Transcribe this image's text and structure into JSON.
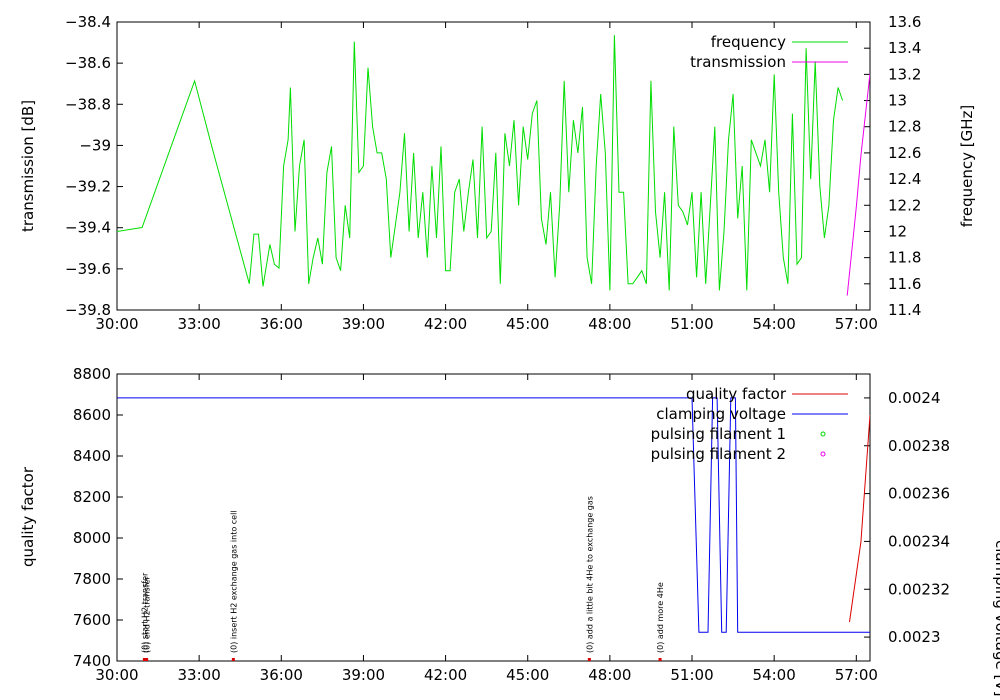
{
  "chart_data": [
    {
      "type": "line",
      "ylabel": "transmission [dB]",
      "y2label": "frequency [GHz]",
      "xlim": [
        "30:00",
        "57:30"
      ],
      "ylim": [
        -39.8,
        -38.4
      ],
      "y2lim": [
        11.4,
        13.6
      ],
      "x_ticks": [
        "30:00",
        "33:00",
        "36:00",
        "39:00",
        "42:00",
        "45:00",
        "48:00",
        "51:00",
        "54:00",
        "57:00"
      ],
      "y_ticks": [
        "-38.4",
        "-38.6",
        "-38.8",
        "-39",
        "-39.2",
        "-39.4",
        "-39.6",
        "-39.8"
      ],
      "y2_ticks": [
        "13.6",
        "13.4",
        "13.2",
        "13",
        "12.8",
        "12.6",
        "12.4",
        "12.2",
        "12",
        "11.8",
        "11.6",
        "11.4"
      ],
      "legend": "top-right",
      "grid": false,
      "series": [
        {
          "name": "frequency",
          "axis": "y2",
          "color": "#00dd00",
          "points": [
            [
              "30:00",
              12.0
            ],
            [
              "30:55",
              12.03
            ],
            [
              "32:50",
              13.15
            ],
            [
              "33:30",
              12.62
            ],
            [
              "34:50",
              11.6
            ],
            [
              "35:00",
              11.98
            ],
            [
              "35:10",
              11.98
            ],
            [
              "35:20",
              11.58
            ],
            [
              "35:35",
              11.9
            ],
            [
              "35:45",
              11.75
            ],
            [
              "35:55",
              11.72
            ],
            [
              "36:05",
              12.5
            ],
            [
              "36:15",
              12.7
            ],
            [
              "36:20",
              13.1
            ],
            [
              "36:30",
              12.0
            ],
            [
              "36:40",
              12.5
            ],
            [
              "36:50",
              12.7
            ],
            [
              "37:00",
              11.6
            ],
            [
              "37:10",
              11.8
            ],
            [
              "37:20",
              11.95
            ],
            [
              "37:30",
              11.75
            ],
            [
              "37:40",
              12.45
            ],
            [
              "37:50",
              12.65
            ],
            [
              "38:00",
              11.8
            ],
            [
              "38:10",
              11.7
            ],
            [
              "38:20",
              12.2
            ],
            [
              "38:30",
              11.95
            ],
            [
              "38:40",
              13.45
            ],
            [
              "38:50",
              12.45
            ],
            [
              "39:00",
              12.5
            ],
            [
              "39:10",
              13.25
            ],
            [
              "39:20",
              12.8
            ],
            [
              "39:30",
              12.6
            ],
            [
              "39:40",
              12.6
            ],
            [
              "39:50",
              12.4
            ],
            [
              "40:00",
              11.8
            ],
            [
              "40:10",
              12.05
            ],
            [
              "40:20",
              12.3
            ],
            [
              "40:30",
              12.75
            ],
            [
              "40:40",
              12.0
            ],
            [
              "40:50",
              12.6
            ],
            [
              "41:00",
              11.95
            ],
            [
              "41:10",
              12.3
            ],
            [
              "41:20",
              11.8
            ],
            [
              "41:30",
              12.5
            ],
            [
              "41:40",
              11.95
            ],
            [
              "41:50",
              12.65
            ],
            [
              "42:00",
              11.7
            ],
            [
              "42:10",
              11.7
            ],
            [
              "42:20",
              12.3
            ],
            [
              "42:30",
              12.4
            ],
            [
              "42:40",
              12.0
            ],
            [
              "42:50",
              12.3
            ],
            [
              "43:00",
              12.55
            ],
            [
              "43:10",
              11.95
            ],
            [
              "43:20",
              12.8
            ],
            [
              "43:30",
              11.95
            ],
            [
              "43:40",
              12.0
            ],
            [
              "43:50",
              12.6
            ],
            [
              "44:00",
              11.6
            ],
            [
              "44:10",
              12.75
            ],
            [
              "44:20",
              12.5
            ],
            [
              "44:30",
              12.85
            ],
            [
              "44:40",
              12.2
            ],
            [
              "44:50",
              12.8
            ],
            [
              "45:00",
              12.55
            ],
            [
              "45:10",
              12.9
            ],
            [
              "45:20",
              13.0
            ],
            [
              "45:30",
              12.1
            ],
            [
              "45:40",
              11.9
            ],
            [
              "45:50",
              12.3
            ],
            [
              "46:00",
              11.65
            ],
            [
              "46:10",
              12.2
            ],
            [
              "46:20",
              13.15
            ],
            [
              "46:30",
              12.3
            ],
            [
              "46:40",
              12.85
            ],
            [
              "46:50",
              12.6
            ],
            [
              "47:00",
              12.95
            ],
            [
              "47:10",
              11.8
            ],
            [
              "47:20",
              11.6
            ],
            [
              "47:30",
              12.5
            ],
            [
              "47:40",
              13.05
            ],
            [
              "47:50",
              12.6
            ],
            [
              "48:00",
              11.55
            ],
            [
              "48:10",
              13.5
            ],
            [
              "48:20",
              12.3
            ],
            [
              "48:30",
              12.3
            ],
            [
              "48:40",
              11.6
            ],
            [
              "48:50",
              11.6
            ],
            [
              "49:00",
              11.65
            ],
            [
              "49:10",
              11.7
            ],
            [
              "49:20",
              11.6
            ],
            [
              "49:30",
              13.15
            ],
            [
              "49:40",
              12.15
            ],
            [
              "49:50",
              11.8
            ],
            [
              "50:00",
              12.3
            ],
            [
              "50:10",
              11.55
            ],
            [
              "50:20",
              12.8
            ],
            [
              "50:30",
              12.2
            ],
            [
              "50:40",
              12.15
            ],
            [
              "50:50",
              12.05
            ],
            [
              "51:00",
              12.3
            ],
            [
              "51:10",
              11.65
            ],
            [
              "51:20",
              12.3
            ],
            [
              "51:30",
              11.6
            ],
            [
              "51:40",
              12.2
            ],
            [
              "51:50",
              12.8
            ],
            [
              "52:00",
              11.55
            ],
            [
              "52:10",
              12.0
            ],
            [
              "52:20",
              12.7
            ],
            [
              "52:30",
              13.05
            ],
            [
              "52:40",
              12.1
            ],
            [
              "52:50",
              12.5
            ],
            [
              "53:00",
              11.55
            ],
            [
              "53:10",
              12.7
            ],
            [
              "53:20",
              12.6
            ],
            [
              "53:30",
              12.5
            ],
            [
              "53:40",
              12.7
            ],
            [
              "53:50",
              12.3
            ],
            [
              "54:00",
              13.2
            ],
            [
              "54:10",
              12.3
            ],
            [
              "54:20",
              11.8
            ],
            [
              "54:30",
              11.6
            ],
            [
              "54:40",
              12.9
            ],
            [
              "54:50",
              11.75
            ],
            [
              "55:00",
              11.8
            ],
            [
              "55:10",
              13.4
            ],
            [
              "55:20",
              12.4
            ],
            [
              "55:30",
              13.3
            ],
            [
              "55:40",
              12.35
            ],
            [
              "55:50",
              11.95
            ],
            [
              "56:00",
              12.2
            ],
            [
              "56:10",
              12.85
            ],
            [
              "56:20",
              13.1
            ],
            [
              "56:30",
              13.0
            ]
          ]
        },
        {
          "name": "transmission",
          "axis": "y",
          "color": "#ee00ee",
          "points": [
            [
              "56:40",
              -39.73
            ],
            [
              "57:00",
              -39.3
            ],
            [
              "57:10",
              -39.05
            ],
            [
              "57:30",
              -38.65
            ]
          ]
        }
      ]
    },
    {
      "type": "line",
      "ylabel": "quality factor",
      "y2label": "clamping voltage [V]",
      "xlim": [
        "30:00",
        "57:30"
      ],
      "ylim": [
        7400,
        8800
      ],
      "y2lim": [
        0.00229,
        0.00241
      ],
      "x_ticks": [
        "30:00",
        "33:00",
        "36:00",
        "39:00",
        "42:00",
        "45:00",
        "48:00",
        "51:00",
        "54:00",
        "57:00"
      ],
      "y_ticks": [
        "8800",
        "8600",
        "8400",
        "8200",
        "8000",
        "7800",
        "7600",
        "7400"
      ],
      "y2_ticks": [
        "0.0024",
        "0.00238",
        "0.00236",
        "0.00234",
        "0.00232",
        "0.0023"
      ],
      "legend": "top-right",
      "grid": false,
      "series": [
        {
          "name": "quality factor",
          "axis": "y",
          "color": "#dd0000",
          "points": [
            [
              "56:45",
              7590
            ],
            [
              "57:10",
              7980
            ],
            [
              "57:30",
              8600
            ]
          ]
        },
        {
          "name": "clamping voltage",
          "axis": "y2",
          "color": "#0000ee",
          "points": [
            [
              "30:00",
              0.0024
            ],
            [
              "51:00",
              0.0024
            ],
            [
              "51:15",
              0.002302
            ],
            [
              "51:35",
              0.002302
            ],
            [
              "51:45",
              0.0024
            ],
            [
              "51:55",
              0.0024
            ],
            [
              "52:05",
              0.002302
            ],
            [
              "52:15",
              0.002302
            ],
            [
              "52:25",
              0.0024
            ],
            [
              "52:35",
              0.0024
            ],
            [
              "52:40",
              0.002302
            ],
            [
              "57:30",
              0.002302
            ]
          ]
        },
        {
          "name": "pulsing filament 1",
          "axis": "y",
          "color": "#00dd00",
          "marker": "circle",
          "points": []
        },
        {
          "name": "pulsing filament 2",
          "axis": "y",
          "color": "#ee00ee",
          "marker": "circle",
          "points": []
        }
      ],
      "annotations": [
        {
          "x": "31:00",
          "text": "(0) start H2 transfer"
        },
        {
          "x": "31:05",
          "text": "(0) end H2 transfer"
        },
        {
          "x": "34:15",
          "text": "(0) insert H2 exchange gas into cell"
        },
        {
          "x": "47:15",
          "text": "(0) add a little bit 4He to exchange gas"
        },
        {
          "x": "49:50",
          "text": "(0) add more 4He"
        }
      ]
    }
  ]
}
